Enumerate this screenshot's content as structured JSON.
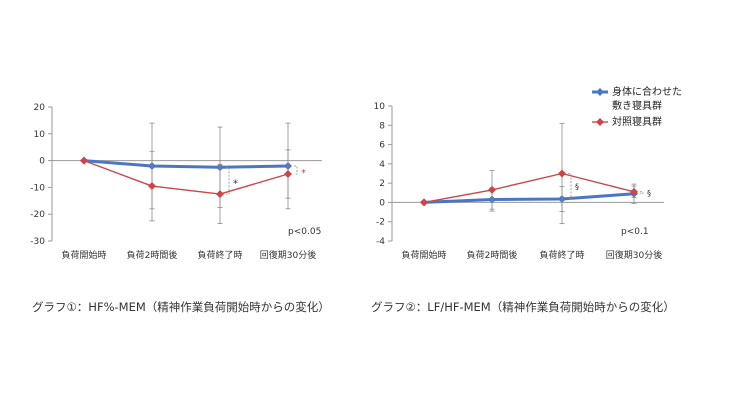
{
  "chart_data": [
    {
      "type": "line",
      "caption": "グラフ①：HF%-MEM（精神作業負荷開始時からの変化）",
      "categories": [
        "負荷開始時",
        "負荷2時間後",
        "負荷終了時",
        "回復期30分後"
      ],
      "ylim": [
        -30,
        20
      ],
      "yticks": [
        20,
        10,
        0,
        -10,
        -20,
        -30
      ],
      "series": [
        {
          "key": "fitted",
          "color": "#4a76c6",
          "marker": "diamond",
          "values": [
            0,
            -2,
            -2.5,
            -2
          ],
          "err": [
            0,
            16,
            15,
            16
          ]
        },
        {
          "key": "control",
          "color": "#c9474c",
          "marker": "diamond",
          "values": [
            0,
            -9.5,
            -12.5,
            -5
          ],
          "err": [
            0,
            13,
            11,
            9
          ]
        }
      ],
      "annotations": [
        {
          "text": "*",
          "category_index": 2,
          "side": "right"
        },
        {
          "text": "*",
          "category_index": 3,
          "side": "right"
        }
      ],
      "note": "p<0.05"
    },
    {
      "type": "line",
      "caption": "グラフ②：LF/HF-MEM（精神作業負荷開始時からの変化）",
      "categories": [
        "負荷開始時",
        "負荷2時間後",
        "負荷終了時",
        "回復期30分後"
      ],
      "ylim": [
        -4,
        10
      ],
      "yticks": [
        10,
        8,
        6,
        4,
        2,
        0,
        -2,
        -4
      ],
      "series": [
        {
          "key": "fitted",
          "name": "身体に合わせた\n敷き寝具群",
          "color": "#4a76c6",
          "marker": "diamond",
          "values": [
            0,
            0.3,
            0.35,
            0.9
          ],
          "err": [
            0,
            1.2,
            1.3,
            1.0
          ]
        },
        {
          "key": "control",
          "name": "対照寝具群",
          "color": "#c9474c",
          "marker": "diamond",
          "values": [
            0,
            1.3,
            3.0,
            1.1
          ],
          "err": [
            0,
            2.0,
            5.2,
            0.6
          ]
        }
      ],
      "legend": {
        "placement": "top-right",
        "entries": [
          {
            "lines": [
              "身体に合わせた",
              "敷き寝具群"
            ],
            "color": "#4a76c6"
          },
          {
            "lines": [
              "対照寝具群"
            ],
            "color": "#c9474c"
          }
        ]
      },
      "annotations": [
        {
          "text": "§",
          "category_index": 2,
          "side": "right"
        },
        {
          "text": "§",
          "category_index": 3,
          "side": "right"
        }
      ],
      "note": "p<0.1"
    }
  ]
}
